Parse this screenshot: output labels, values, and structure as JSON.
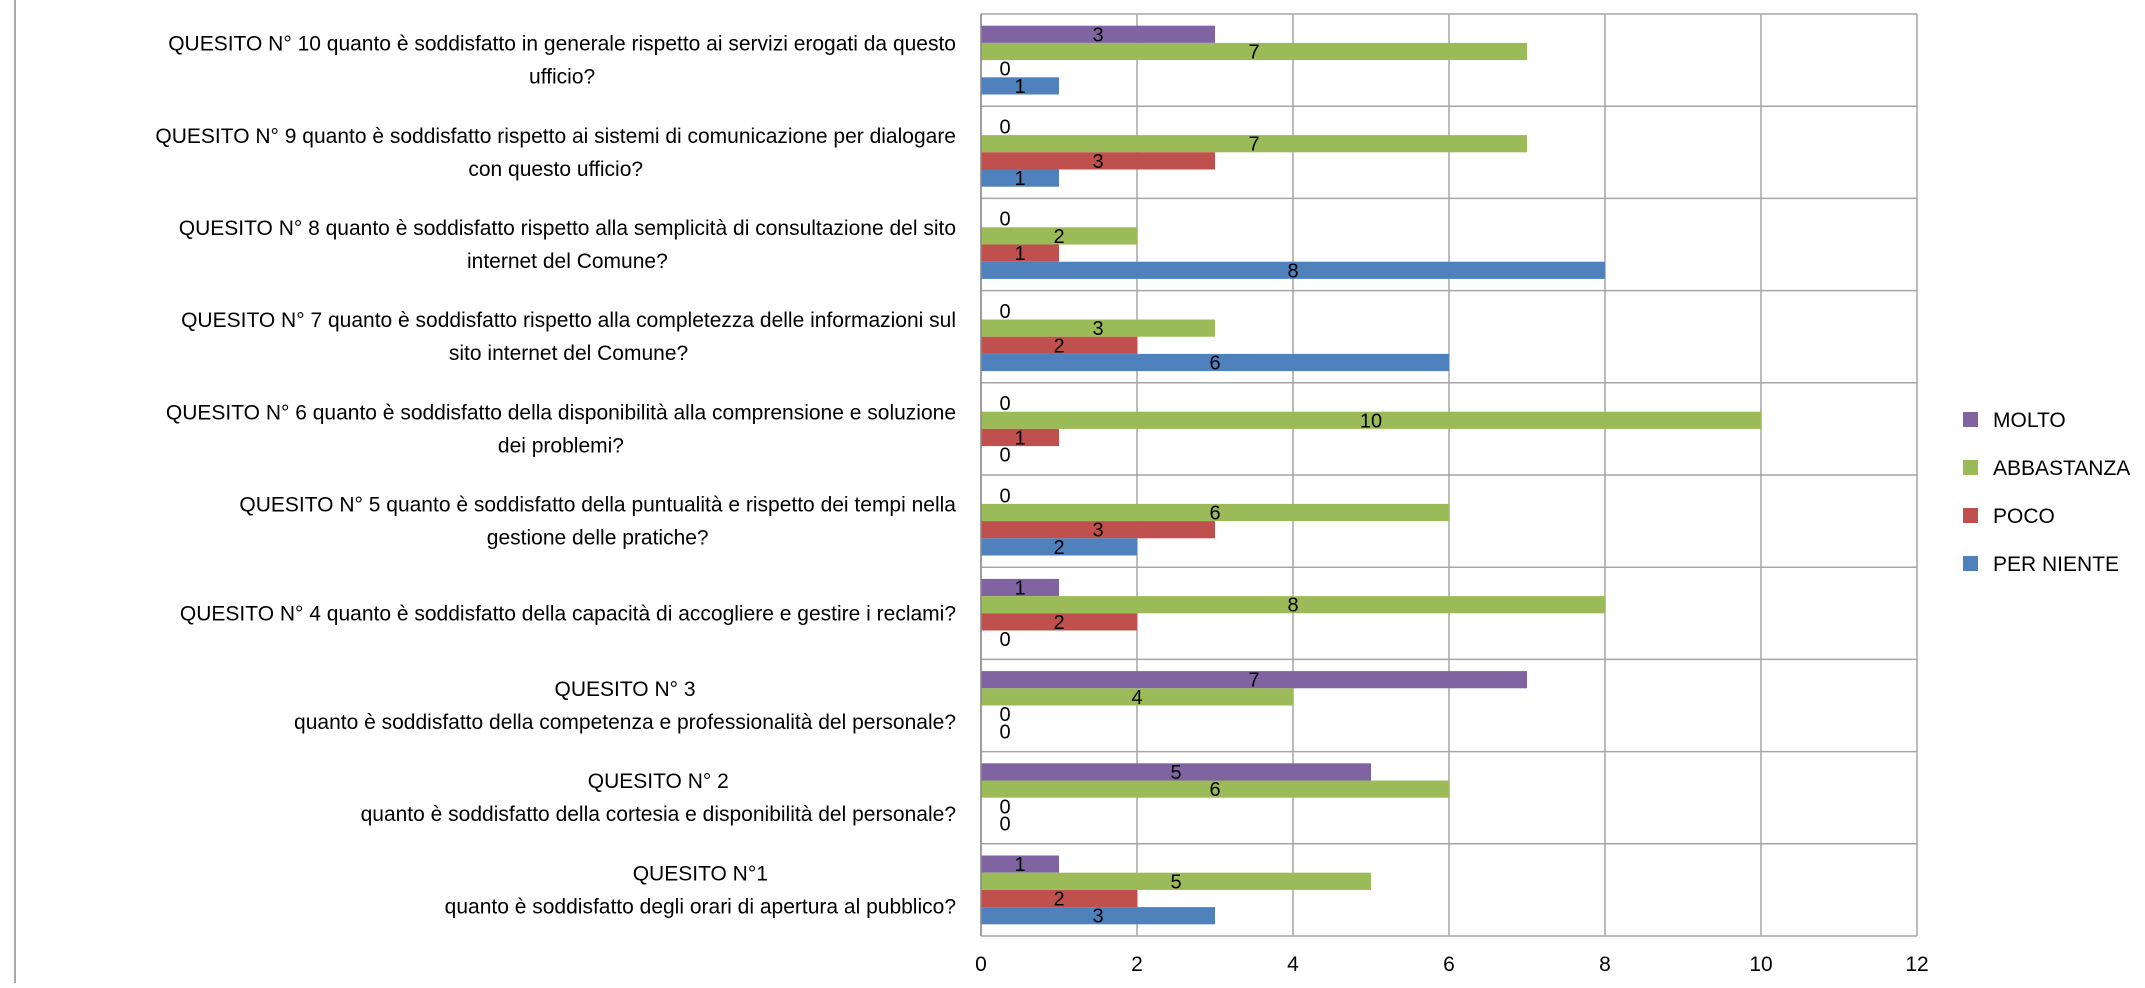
{
  "chart_data": {
    "type": "bar",
    "orientation": "horizontal",
    "title": "",
    "xlabel": "",
    "ylabel": "",
    "xlim": [
      0,
      12
    ],
    "x_ticks": [
      "0",
      "2",
      "4",
      "6",
      "8",
      "10",
      "12"
    ],
    "grid": true,
    "legend_position": "right",
    "categories": [
      [
        "QUESITO N° 10 quanto è soddisfatto in generale rispetto ai servizi erogati da questo",
        "ufficio?"
      ],
      [
        "QUESITO N° 9 quanto è soddisfatto rispetto ai sistemi di comunicazione per dialogare",
        "con questo ufficio?"
      ],
      [
        "QUESITO N° 8 quanto è soddisfatto rispetto alla   semplicità di consultazione del  sito",
        "internet del Comune?"
      ],
      [
        "QUESITO N° 7 quanto è soddisfatto rispetto alla   completezza delle informazioni sul",
        "sito internet del Comune?"
      ],
      [
        "QUESITO N° 6 quanto è soddisfatto della   disponibilità alla comprensione e soluzione",
        "dei problemi?"
      ],
      [
        "QUESITO N° 5 quanto è soddisfatto della   puntualità e  rispetto dei tempi nella",
        "gestione delle pratiche?"
      ],
      [
        "QUESITO N° 4  quanto è soddisfatto della  capacità di accogliere e gestire i reclami?"
      ],
      [
        "QUESITO N° 3",
        "quanto è soddisfatto della  competenza e professionalità del personale?"
      ],
      [
        "QUESITO N° 2",
        "quanto è soddisfatto della cortesia e disponibilità del personale?"
      ],
      [
        "QUESITO N°1",
        "quanto è soddisfatto degli orari di apertura al pubblico?"
      ]
    ],
    "series": [
      {
        "name": "MOLTO",
        "color": "#8064A2",
        "values": [
          3,
          0,
          0,
          0,
          0,
          0,
          1,
          7,
          5,
          1
        ]
      },
      {
        "name": "ABBASTANZA",
        "color": "#9BBB59",
        "values": [
          7,
          7,
          2,
          3,
          10,
          6,
          8,
          4,
          6,
          5
        ]
      },
      {
        "name": "POCO",
        "color": "#C0504D",
        "values": [
          0,
          3,
          1,
          2,
          1,
          3,
          2,
          0,
          0,
          2
        ]
      },
      {
        "name": "PER NIENTE",
        "color": "#4F81BD",
        "values": [
          1,
          1,
          8,
          6,
          0,
          2,
          0,
          0,
          0,
          3
        ]
      }
    ],
    "legend_order": [
      "MOLTO",
      "ABBASTANZA",
      "POCO",
      "PER NIENTE"
    ]
  },
  "colors": {
    "grid": "#A6A6A6",
    "axis": "#8C8C8C",
    "frame": "#8C8C8C"
  }
}
